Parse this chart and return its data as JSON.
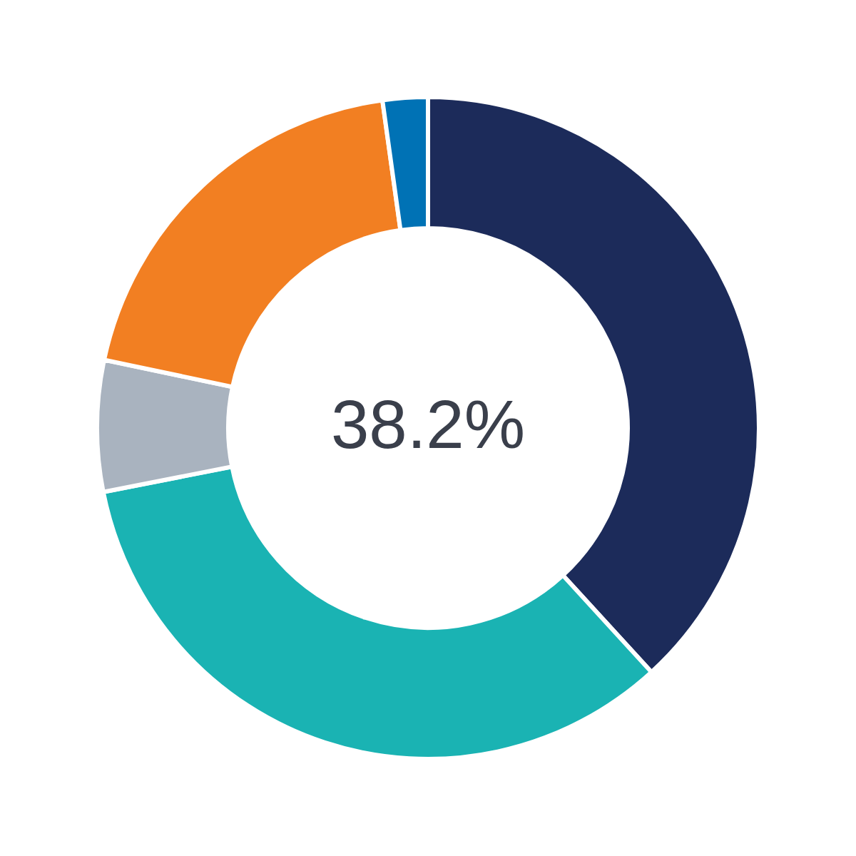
{
  "chart_data": {
    "type": "donut",
    "categories": [
      null,
      null,
      null,
      null,
      null
    ],
    "values": [
      38.2,
      33.7,
      6.4,
      19.5,
      2.2
    ],
    "colors": [
      "#1c2b5a",
      "#1ab3b3",
      "#a9b3bf",
      "#f27f22",
      "#0072b5"
    ],
    "annotations": [
      "38.2%"
    ],
    "legend": false
  }
}
